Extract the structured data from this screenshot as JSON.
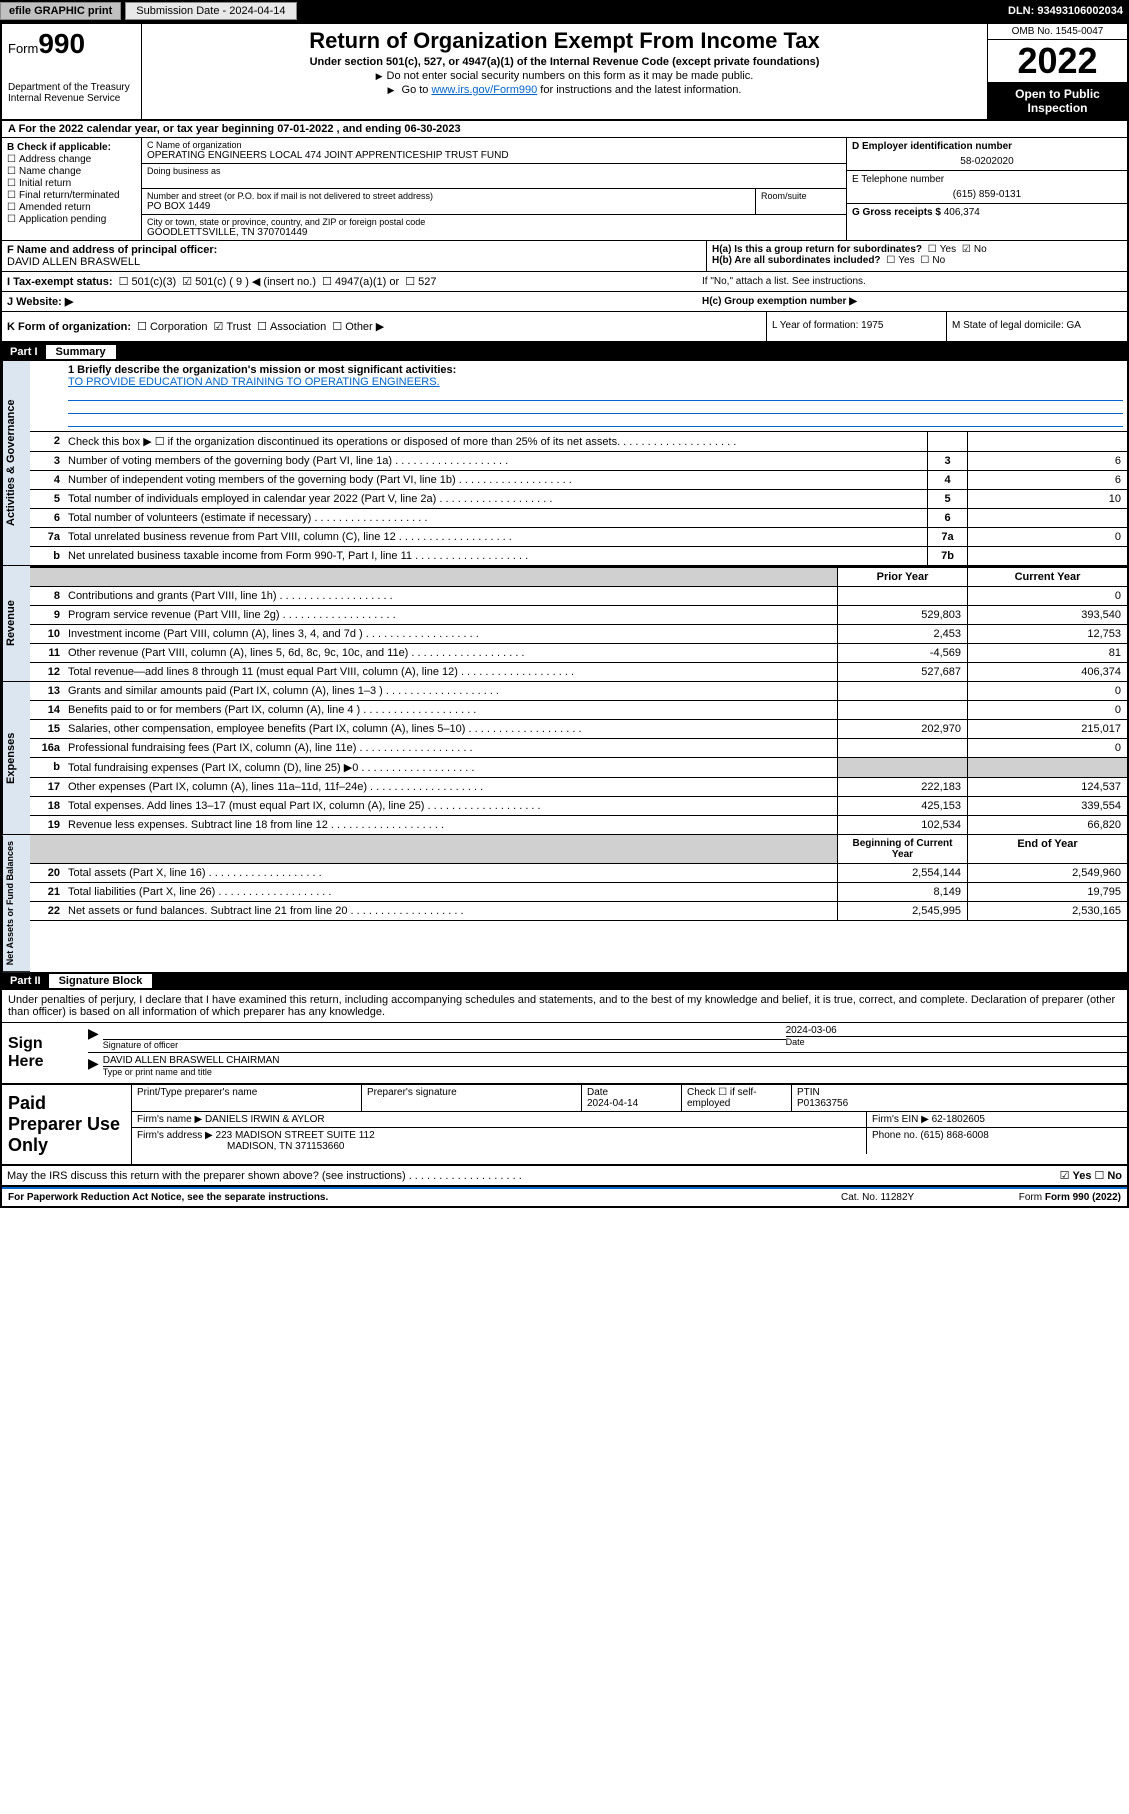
{
  "topbar": {
    "btn1": "efile GRAPHIC print",
    "btn2": "Submission Date - 2024-04-14",
    "dln": "DLN: 93493106002034"
  },
  "header": {
    "form_label": "Form",
    "form_num": "990",
    "dept": "Department of the Treasury\nInternal Revenue Service",
    "title": "Return of Organization Exempt From Income Tax",
    "sub": "Under section 501(c), 527, or 4947(a)(1) of the Internal Revenue Code (except private foundations)",
    "note1": "Do not enter social security numbers on this form as it may be made public.",
    "note2_pre": "Go to ",
    "note2_link": "www.irs.gov/Form990",
    "note2_post": " for instructions and the latest information.",
    "omb": "OMB No. 1545-0047",
    "year": "2022",
    "open": "Open to Public Inspection"
  },
  "line_a": "A For the 2022 calendar year, or tax year beginning 07-01-2022  , and ending 06-30-2023",
  "colB": {
    "label": "B Check if applicable:",
    "items": [
      "Address change",
      "Name change",
      "Initial return",
      "Final return/terminated",
      "Amended return",
      "Application pending"
    ]
  },
  "colC": {
    "name_lbl": "C Name of organization",
    "name": "OPERATING ENGINEERS LOCAL 474 JOINT APPRENTICESHIP TRUST FUND",
    "dba_lbl": "Doing business as",
    "addr_lbl": "Number and street (or P.O. box if mail is not delivered to street address)",
    "addr": "PO BOX 1449",
    "room_lbl": "Room/suite",
    "city_lbl": "City or town, state or province, country, and ZIP or foreign postal code",
    "city": "GOODLETTSVILLE, TN  370701449"
  },
  "colD": {
    "lbl": "D Employer identification number",
    "val": "58-0202020"
  },
  "colE": {
    "lbl": "E Telephone number",
    "val": "(615) 859-0131"
  },
  "colG": {
    "lbl": "G Gross receipts $",
    "val": "406,374"
  },
  "rowF": {
    "lbl": "F  Name and address of principal officer:",
    "val": "DAVID ALLEN BRASWELL"
  },
  "rowH": {
    "a": "H(a)  Is this a group return for subordinates?",
    "a_yes": "Yes",
    "a_no": "No",
    "b": "H(b)  Are all subordinates included?",
    "b_yes": "Yes",
    "b_no": "No",
    "b_note": "If \"No,\" attach a list. See instructions.",
    "c": "H(c)  Group exemption number ▶"
  },
  "rowI": {
    "lbl": "I   Tax-exempt status:",
    "o1": "501(c)(3)",
    "o2": "501(c) ( 9 ) ◀ (insert no.)",
    "o3": "4947(a)(1) or",
    "o4": "527"
  },
  "rowJ": {
    "lbl": "J   Website: ▶"
  },
  "rowK": {
    "lbl": "K Form of organization:",
    "o1": "Corporation",
    "o2": "Trust",
    "o3": "Association",
    "o4": "Other ▶",
    "L": "L Year of formation: 1975",
    "M": "M State of legal domicile: GA"
  },
  "part1": {
    "num": "Part I",
    "title": "Summary"
  },
  "mission": {
    "q": "1   Briefly describe the organization's mission or most significant activities:",
    "a": "TO PROVIDE EDUCATION AND TRAINING TO OPERATING ENGINEERS."
  },
  "gov_rows": [
    {
      "n": "2",
      "d": "Check this box ▶ ☐  if the organization discontinued its operations or disposed of more than 25% of its net assets.",
      "box": "",
      "v": ""
    },
    {
      "n": "3",
      "d": "Number of voting members of the governing body (Part VI, line 1a)",
      "box": "3",
      "v": "6"
    },
    {
      "n": "4",
      "d": "Number of independent voting members of the governing body (Part VI, line 1b)",
      "box": "4",
      "v": "6"
    },
    {
      "n": "5",
      "d": "Total number of individuals employed in calendar year 2022 (Part V, line 2a)",
      "box": "5",
      "v": "10"
    },
    {
      "n": "6",
      "d": "Total number of volunteers (estimate if necessary)",
      "box": "6",
      "v": ""
    },
    {
      "n": "7a",
      "d": "Total unrelated business revenue from Part VIII, column (C), line 12",
      "box": "7a",
      "v": "0"
    },
    {
      "n": "b",
      "d": "Net unrelated business taxable income from Form 990-T, Part I, line 11",
      "box": "7b",
      "v": ""
    }
  ],
  "col_hdr": {
    "prior": "Prior Year",
    "curr": "Current Year"
  },
  "rev_rows": [
    {
      "n": "8",
      "d": "Contributions and grants (Part VIII, line 1h)",
      "p": "",
      "c": "0"
    },
    {
      "n": "9",
      "d": "Program service revenue (Part VIII, line 2g)",
      "p": "529,803",
      "c": "393,540"
    },
    {
      "n": "10",
      "d": "Investment income (Part VIII, column (A), lines 3, 4, and 7d )",
      "p": "2,453",
      "c": "12,753"
    },
    {
      "n": "11",
      "d": "Other revenue (Part VIII, column (A), lines 5, 6d, 8c, 9c, 10c, and 11e)",
      "p": "-4,569",
      "c": "81"
    },
    {
      "n": "12",
      "d": "Total revenue—add lines 8 through 11 (must equal Part VIII, column (A), line 12)",
      "p": "527,687",
      "c": "406,374"
    }
  ],
  "exp_rows": [
    {
      "n": "13",
      "d": "Grants and similar amounts paid (Part IX, column (A), lines 1–3 )",
      "p": "",
      "c": "0"
    },
    {
      "n": "14",
      "d": "Benefits paid to or for members (Part IX, column (A), line 4 )",
      "p": "",
      "c": "0"
    },
    {
      "n": "15",
      "d": "Salaries, other compensation, employee benefits (Part IX, column (A), lines 5–10)",
      "p": "202,970",
      "c": "215,017"
    },
    {
      "n": "16a",
      "d": "Professional fundraising fees (Part IX, column (A), line 11e)",
      "p": "",
      "c": "0"
    },
    {
      "n": "b",
      "d": "Total fundraising expenses (Part IX, column (D), line 25) ▶0",
      "p": "",
      "c": "",
      "shade": true
    },
    {
      "n": "17",
      "d": "Other expenses (Part IX, column (A), lines 11a–11d, 11f–24e)",
      "p": "222,183",
      "c": "124,537"
    },
    {
      "n": "18",
      "d": "Total expenses. Add lines 13–17 (must equal Part IX, column (A), line 25)",
      "p": "425,153",
      "c": "339,554"
    },
    {
      "n": "19",
      "d": "Revenue less expenses. Subtract line 18 from line 12",
      "p": "102,534",
      "c": "66,820"
    }
  ],
  "na_hdr": {
    "b": "Beginning of Current Year",
    "e": "End of Year"
  },
  "na_rows": [
    {
      "n": "20",
      "d": "Total assets (Part X, line 16)",
      "p": "2,554,144",
      "c": "2,549,960"
    },
    {
      "n": "21",
      "d": "Total liabilities (Part X, line 26)",
      "p": "8,149",
      "c": "19,795"
    },
    {
      "n": "22",
      "d": "Net assets or fund balances. Subtract line 21 from line 20",
      "p": "2,545,995",
      "c": "2,530,165"
    }
  ],
  "part2": {
    "num": "Part II",
    "title": "Signature Block"
  },
  "sig_intro": "Under penalties of perjury, I declare that I have examined this return, including accompanying schedules and statements, and to the best of my knowledge and belief, it is true, correct, and complete. Declaration of preparer (other than officer) is based on all information of which preparer has any knowledge.",
  "sign": {
    "lbl": "Sign Here",
    "date": "2024-03-06",
    "sig_lbl": "Signature of officer",
    "date_lbl": "Date",
    "name": "DAVID ALLEN BRASWELL  CHAIRMAN",
    "name_lbl": "Type or print name and title"
  },
  "prep": {
    "lbl": "Paid Preparer Use Only",
    "h1": "Print/Type preparer's name",
    "h2": "Preparer's signature",
    "h3": "Date",
    "h3v": "2024-04-14",
    "h4": "Check ☐ if self-employed",
    "h5": "PTIN",
    "h5v": "P01363756",
    "firm_lbl": "Firm's name   ▶",
    "firm": "DANIELS IRWIN & AYLOR",
    "ein_lbl": "Firm's EIN ▶",
    "ein": "62-1802605",
    "addr_lbl": "Firm's address ▶",
    "addr1": "223 MADISON STREET SUITE 112",
    "addr2": "MADISON, TN  371153660",
    "phone_lbl": "Phone no.",
    "phone": "(615) 868-6008"
  },
  "discuss": {
    "q": "May the IRS discuss this return with the preparer shown above? (see instructions)",
    "yes": "Yes",
    "no": "No"
  },
  "footer": {
    "l": "For Paperwork Reduction Act Notice, see the separate instructions.",
    "m": "Cat. No. 11282Y",
    "r": "Form 990 (2022)"
  }
}
